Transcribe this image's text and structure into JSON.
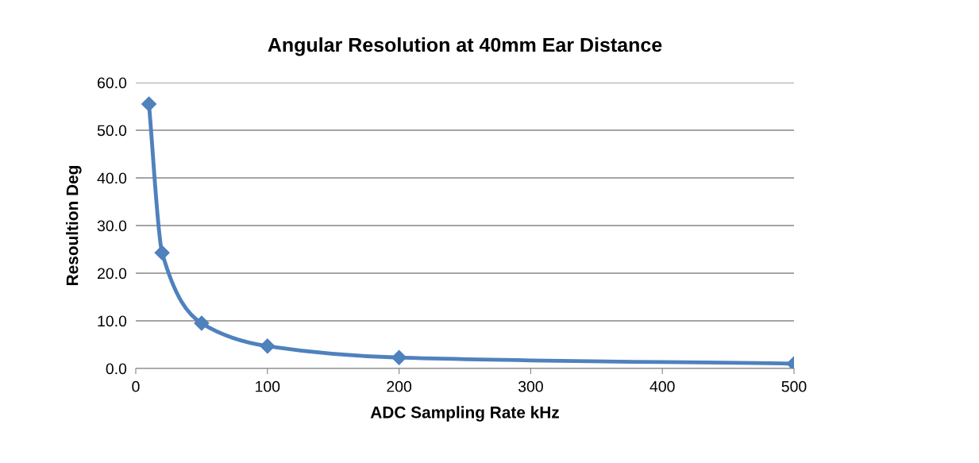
{
  "chart_data": {
    "type": "line",
    "title": "Angular Resolution at 40mm Ear Distance",
    "xlabel": "ADC Sampling Rate kHz",
    "ylabel": "Resoultion Deg",
    "x": [
      10,
      20,
      50,
      100,
      200,
      500
    ],
    "series": [
      {
        "color": "#4f81bd",
        "values": [
          55.5,
          24.3,
          9.5,
          4.7,
          2.3,
          1.0
        ]
      }
    ],
    "xlim": [
      0,
      500
    ],
    "xticks": [
      0,
      100,
      200,
      300,
      400,
      500
    ],
    "ylim": [
      0,
      60
    ],
    "yticks": [
      {
        "value": 0,
        "label": "0.0"
      },
      {
        "value": 10,
        "label": "10.0"
      },
      {
        "value": 20,
        "label": "20.0"
      },
      {
        "value": 30,
        "label": "30.0"
      },
      {
        "value": 40,
        "label": "40.0"
      },
      {
        "value": 50,
        "label": "50.0"
      },
      {
        "value": 60,
        "label": "60.0"
      }
    ],
    "grid": "y",
    "marker": "diamond",
    "line_style": "solid",
    "legend": false
  }
}
